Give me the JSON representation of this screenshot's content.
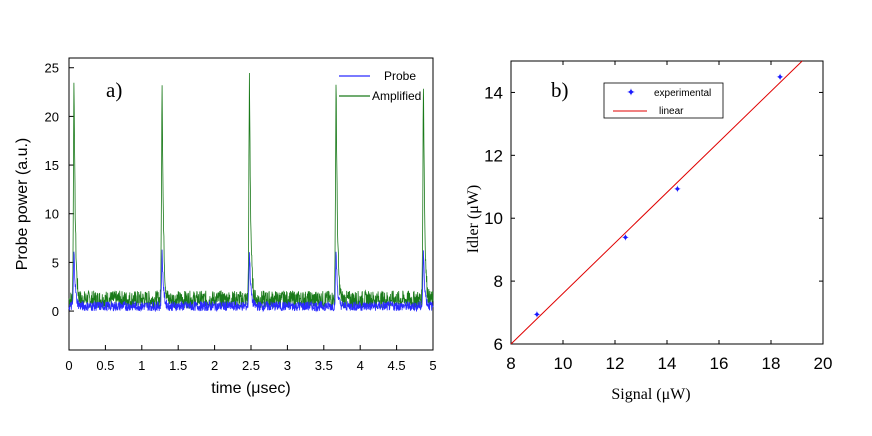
{
  "chart_data": [
    {
      "type": "line",
      "panel_label": "a)",
      "xlabel": "time (μsec)",
      "ylabel": "Probe power (a.u.)",
      "xlim": [
        0,
        5
      ],
      "ylim": [
        -4,
        26
      ],
      "xticks": [
        "0",
        "0.5",
        "1",
        "1.5",
        "2",
        "2.5",
        "3",
        "3.5",
        "4",
        "4.5",
        "5"
      ],
      "yticks": [
        "0",
        "5",
        "10",
        "15",
        "20",
        "25"
      ],
      "legend": {
        "position": "top-right"
      },
      "pulse_times": [
        0.07,
        1.28,
        2.48,
        3.67,
        4.87
      ],
      "series": [
        {
          "name": "Probe",
          "color": "#2b2bff",
          "baseline": 0.5,
          "noise": 0.5,
          "peak": 5.5
        },
        {
          "name": "Amplified",
          "color": "#1a7a1a",
          "baseline": 1.2,
          "noise": 0.9,
          "peak": 23
        }
      ]
    },
    {
      "type": "scatter",
      "panel_label": "b)",
      "xlabel": "Signal (μW)",
      "ylabel": "Idler (μW)",
      "xlim": [
        8,
        20
      ],
      "ylim": [
        6,
        15
      ],
      "xticks": [
        "8",
        "10",
        "12",
        "14",
        "16",
        "18",
        "20"
      ],
      "yticks": [
        "6",
        "8",
        "10",
        "12",
        "14"
      ],
      "legend": {
        "position": "top-left"
      },
      "series": [
        {
          "name": "experimental",
          "color": "#1a1aff",
          "points": [
            [
              9.0,
              6.95
            ],
            [
              12.4,
              9.4
            ],
            [
              14.4,
              10.95
            ],
            [
              18.35,
              14.5
            ]
          ]
        },
        {
          "name": "linear",
          "color": "#e00000",
          "line": [
            [
              8.0,
              6.0
            ],
            [
              19.2,
              15.0
            ]
          ]
        }
      ]
    }
  ]
}
